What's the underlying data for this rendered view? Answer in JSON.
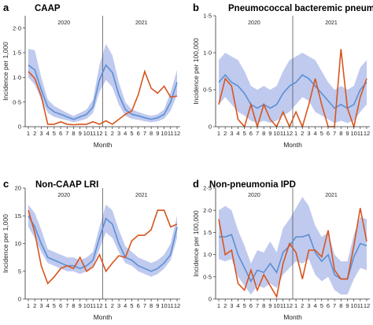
{
  "figure": {
    "x_label": "Month",
    "month_labels": [
      "1",
      "2",
      "3",
      "4",
      "5",
      "6",
      "7",
      "8",
      "9",
      "10",
      "11",
      "12",
      "1",
      "2",
      "3",
      "4",
      "5",
      "6",
      "7",
      "8",
      "9",
      "10",
      "11",
      "12"
    ],
    "year_labels": [
      "2020",
      "2021"
    ]
  },
  "colors": {
    "observed": "#d9541e",
    "expected": "#5b8fd4",
    "band": "#aab8e8"
  },
  "chart_data": [
    {
      "type": "line",
      "panel": "a",
      "title": "CAAP",
      "ylabel": "Incidence per 1,000",
      "ylim": [
        0,
        2.25
      ],
      "yticks": [
        0,
        0.5,
        1.0,
        1.5,
        2.0
      ],
      "ytick_labels": [
        "0",
        "0·5",
        "1·0",
        "1·5",
        "2·0"
      ],
      "x": [
        1,
        2,
        3,
        4,
        5,
        6,
        7,
        8,
        9,
        10,
        11,
        12,
        13,
        14,
        15,
        16,
        17,
        18,
        19,
        20,
        21,
        22,
        23,
        24
      ],
      "series": [
        {
          "role": "observed",
          "values": [
            1.12,
            0.98,
            0.62,
            0.05,
            0.05,
            0.1,
            0.05,
            0.04,
            0.05,
            0.05,
            0.1,
            0.05,
            0.12,
            0.05,
            0.15,
            0.25,
            0.32,
            0.65,
            1.12,
            0.78,
            0.68,
            0.82,
            0.6,
            0.62
          ]
        },
        {
          "role": "expected",
          "values": [
            1.25,
            1.15,
            0.75,
            0.4,
            0.3,
            0.25,
            0.2,
            0.15,
            0.2,
            0.25,
            0.4,
            0.95,
            1.25,
            1.1,
            0.65,
            0.35,
            0.25,
            0.22,
            0.18,
            0.15,
            0.18,
            0.25,
            0.5,
            0.9
          ]
        },
        {
          "role": "interval_upper",
          "values": [
            1.58,
            1.55,
            1.0,
            0.55,
            0.42,
            0.35,
            0.28,
            0.22,
            0.28,
            0.35,
            0.55,
            1.25,
            1.68,
            1.45,
            0.9,
            0.5,
            0.35,
            0.3,
            0.25,
            0.22,
            0.25,
            0.35,
            0.7,
            1.15
          ]
        },
        {
          "role": "interval_lower",
          "values": [
            1.0,
            0.85,
            0.55,
            0.28,
            0.2,
            0.16,
            0.13,
            0.09,
            0.12,
            0.16,
            0.28,
            0.7,
            0.95,
            0.8,
            0.45,
            0.22,
            0.16,
            0.14,
            0.11,
            0.09,
            0.11,
            0.16,
            0.32,
            0.65
          ]
        }
      ]
    },
    {
      "type": "line",
      "panel": "b",
      "title": "Pneumococcal bacteremic pneumonia",
      "ylabel": "Incidence per 100,000",
      "ylim": [
        0,
        1.5
      ],
      "yticks": [
        0,
        0.5,
        1.0,
        1.5
      ],
      "ytick_labels": [
        "0",
        "0·5",
        "1·0",
        "1·5"
      ],
      "x": [
        1,
        2,
        3,
        4,
        5,
        6,
        7,
        8,
        9,
        10,
        11,
        12,
        13,
        14,
        15,
        16,
        17,
        18,
        19,
        20,
        21,
        22,
        23,
        24
      ],
      "series": [
        {
          "role": "observed",
          "values": [
            0.3,
            0.65,
            0.55,
            0.1,
            0.0,
            0.3,
            0.0,
            0.3,
            0.1,
            0.0,
            0.2,
            0.0,
            0.2,
            0.0,
            0.3,
            0.65,
            0.3,
            0.0,
            0.0,
            1.05,
            0.25,
            0.0,
            0.4,
            0.65
          ]
        },
        {
          "role": "expected",
          "values": [
            0.6,
            0.7,
            0.6,
            0.55,
            0.45,
            0.3,
            0.25,
            0.3,
            0.25,
            0.3,
            0.45,
            0.55,
            0.6,
            0.7,
            0.65,
            0.55,
            0.45,
            0.35,
            0.25,
            0.3,
            0.25,
            0.3,
            0.5,
            0.6
          ]
        },
        {
          "role": "interval_upper",
          "values": [
            0.9,
            1.0,
            0.95,
            0.9,
            0.75,
            0.55,
            0.5,
            0.55,
            0.5,
            0.55,
            0.75,
            0.9,
            0.95,
            1.0,
            0.95,
            0.9,
            0.75,
            0.6,
            0.5,
            0.55,
            0.5,
            0.55,
            0.8,
            0.9
          ]
        },
        {
          "role": "interval_lower",
          "values": [
            0.3,
            0.4,
            0.3,
            0.2,
            0.15,
            0.08,
            0.05,
            0.08,
            0.05,
            0.08,
            0.15,
            0.2,
            0.3,
            0.4,
            0.35,
            0.2,
            0.15,
            0.1,
            0.05,
            0.08,
            0.05,
            0.08,
            0.2,
            0.3
          ]
        }
      ]
    },
    {
      "type": "line",
      "panel": "c",
      "title": "Non-CAAP LRI",
      "ylabel": "Incidence per 1,000",
      "ylim": [
        0,
        20
      ],
      "yticks": [
        0,
        5,
        10,
        15,
        20
      ],
      "ytick_labels": [
        "0",
        "5",
        "10",
        "15",
        "20"
      ],
      "x": [
        1,
        2,
        3,
        4,
        5,
        6,
        7,
        8,
        9,
        10,
        11,
        12,
        13,
        14,
        15,
        16,
        17,
        18,
        19,
        20,
        21,
        22,
        23,
        24
      ],
      "series": [
        {
          "role": "observed",
          "values": [
            16.0,
            12.0,
            6.0,
            2.8,
            4.0,
            5.5,
            6.0,
            5.5,
            7.5,
            5.0,
            5.8,
            8.0,
            5.0,
            6.5,
            7.8,
            7.5,
            10.5,
            11.5,
            11.5,
            12.5,
            16.0,
            16.0,
            13.0,
            13.5
          ]
        },
        {
          "role": "expected",
          "values": [
            15.0,
            13.0,
            10.0,
            7.5,
            7.0,
            6.5,
            6.0,
            6.0,
            5.5,
            6.0,
            7.0,
            11.0,
            14.5,
            13.5,
            10.0,
            7.5,
            7.0,
            6.0,
            5.5,
            5.0,
            5.5,
            6.5,
            8.0,
            13.0
          ]
        },
        {
          "role": "interval_upper",
          "values": [
            17.0,
            15.5,
            12.5,
            9.0,
            8.5,
            8.0,
            7.5,
            7.5,
            7.0,
            7.5,
            8.5,
            13.0,
            17.0,
            16.0,
            12.5,
            9.5,
            8.5,
            7.5,
            7.0,
            6.5,
            7.0,
            8.0,
            10.0,
            15.0
          ]
        },
        {
          "role": "interval_lower",
          "values": [
            13.0,
            11.0,
            8.5,
            6.5,
            6.0,
            5.5,
            5.0,
            5.0,
            4.5,
            5.0,
            6.0,
            9.0,
            12.0,
            11.0,
            8.5,
            6.5,
            6.0,
            5.0,
            4.5,
            4.0,
            4.5,
            5.5,
            7.0,
            11.0
          ]
        }
      ]
    },
    {
      "type": "line",
      "panel": "d",
      "title": "Non-pneumonia IPD",
      "ylabel": "Incidence per 100,000",
      "ylim": [
        0,
        2.5
      ],
      "yticks": [
        0,
        0.5,
        1.0,
        1.5,
        2.0,
        2.5
      ],
      "ytick_labels": [
        "0",
        "0·5",
        "1·0",
        "1·5",
        "2·0",
        "2·5"
      ],
      "x": [
        1,
        2,
        3,
        4,
        5,
        6,
        7,
        8,
        9,
        10,
        11,
        12,
        13,
        14,
        15,
        16,
        17,
        18,
        19,
        20,
        21,
        22,
        23,
        24
      ],
      "series": [
        {
          "role": "observed",
          "values": [
            1.8,
            1.0,
            1.1,
            0.35,
            0.2,
            0.65,
            0.2,
            0.55,
            0.3,
            0.05,
            0.8,
            1.25,
            1.05,
            0.45,
            1.1,
            1.1,
            0.95,
            1.55,
            0.65,
            0.45,
            0.45,
            1.2,
            2.05,
            1.3
          ]
        },
        {
          "role": "expected",
          "values": [
            1.4,
            1.4,
            1.45,
            1.0,
            0.7,
            0.4,
            0.65,
            0.6,
            0.8,
            0.6,
            1.05,
            1.2,
            1.4,
            1.4,
            1.45,
            1.05,
            0.85,
            1.0,
            0.55,
            0.45,
            0.45,
            0.95,
            1.25,
            1.2
          ]
        },
        {
          "role": "interval_upper",
          "values": [
            2.0,
            2.1,
            2.0,
            1.55,
            1.2,
            0.8,
            1.1,
            1.05,
            1.3,
            1.05,
            1.6,
            1.8,
            2.05,
            2.3,
            2.1,
            1.65,
            1.4,
            1.5,
            1.0,
            0.85,
            0.85,
            1.45,
            1.85,
            1.8
          ]
        },
        {
          "role": "interval_lower",
          "values": [
            0.9,
            0.85,
            0.9,
            0.5,
            0.3,
            0.1,
            0.3,
            0.25,
            0.35,
            0.25,
            0.55,
            0.7,
            0.85,
            0.8,
            0.9,
            0.55,
            0.4,
            0.5,
            0.2,
            0.1,
            0.1,
            0.45,
            0.7,
            0.65
          ]
        }
      ]
    }
  ]
}
